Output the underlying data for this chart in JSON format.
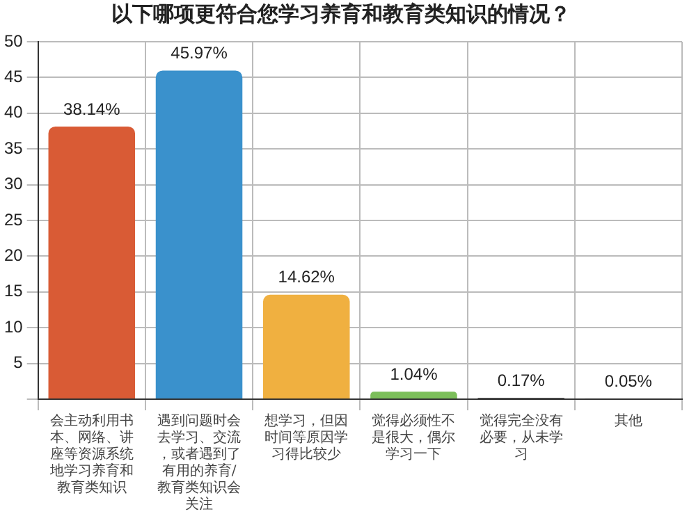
{
  "chart_data": {
    "type": "bar",
    "title": "以下哪项更符合您学习养育和教育类知识的情况？",
    "categories": [
      "会主动利用书本、网络、讲座等资源系统地学习养育和教育类知识",
      "遇到问题时会去学习、交流，或者遇到了有用的养育/教育类知识会关注",
      "想学习，但因时间等原因学习得比较少",
      "觉得必须性不是很大，偶尔学习一下",
      "觉得完全没有必要，从未学习",
      "其他"
    ],
    "values": [
      38.14,
      45.97,
      14.62,
      1.04,
      0.17,
      0.05
    ],
    "value_labels": [
      "38.14%",
      "45.97%",
      "14.62%",
      "1.04%",
      "0.17%",
      "0.05%"
    ],
    "colors": [
      "#d95b35",
      "#3a91cc",
      "#f0b040",
      "#7cbf5a",
      "#222222",
      "#222222"
    ],
    "ylim": [
      0,
      50
    ],
    "yticks": [
      {
        "value": 0,
        "label": null
      },
      5,
      10,
      15,
      20,
      25,
      30,
      35,
      40,
      45,
      50
    ],
    "grid": true
  }
}
